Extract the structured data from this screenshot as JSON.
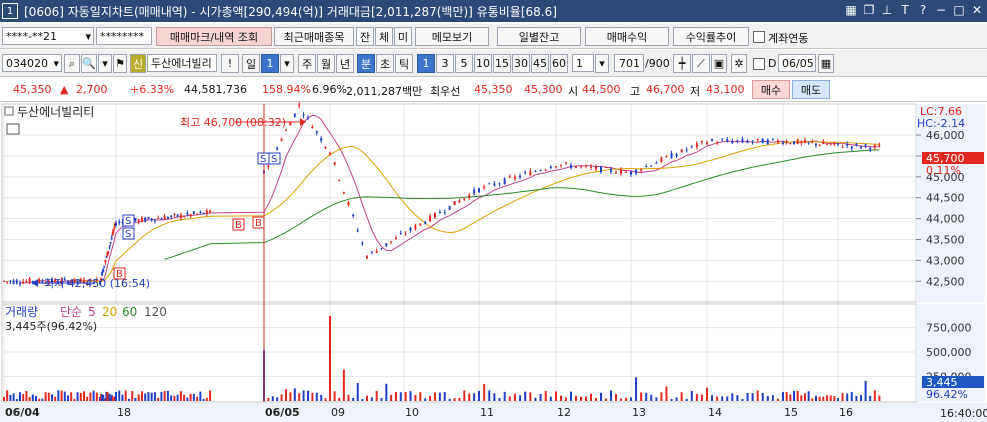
{
  "window": {
    "number": "1",
    "title": "[0606] 자동일지차트(매매내역) - 시가총액[290,494(억)] 거래대금[2,011,287(백만)] 유통비율[68.6]"
  },
  "toolbar1": {
    "account": "****-**21",
    "password": "********",
    "tabs": [
      "매매마크/내역 조회",
      "최근매매종목",
      "잔",
      "체",
      "미"
    ],
    "memo": "메모보기",
    "daily": "일별잔고",
    "profit": "매매수익",
    "trend": "수익률추이",
    "link_label": "계좌연동"
  },
  "toolbar2": {
    "code": "034020",
    "credit_badge": "신",
    "stock_name": "두산에너빌리",
    "bang": "!",
    "day_label": "일",
    "day_value": "1",
    "periods": [
      "주",
      "월",
      "년",
      "분",
      "초",
      "틱"
    ],
    "intervals": [
      "1",
      "3",
      "5",
      "10",
      "15",
      "30",
      "45",
      "60"
    ],
    "count_value": "1",
    "view_count": "701",
    "view_total": "/900",
    "d_label": "D",
    "date": "06/05"
  },
  "quote": {
    "price": "45,350",
    "change": "2,700",
    "change_pct": "+6.33%",
    "volume": "44,581,736",
    "vol_ratio": "158.94%",
    "turnover": "6.96%",
    "amount": "2,011,287백만",
    "best_ask_label": "최우선",
    "best_ask": "45,350",
    "best_bid": "45,300",
    "open_label": "시",
    "open": "44,500",
    "high_label": "고",
    "high": "46,700",
    "low_label": "저",
    "low": "43,100",
    "buy": "매수",
    "sell": "매도"
  },
  "price_panel": {
    "name": "두산에너빌리티",
    "lc": "LC:7.66",
    "hc": "HC:-2.14",
    "high_annot": "최고 46,700 (08:32)",
    "low_annot": "최저 42,450 (16:54)",
    "current_price_tag": "45,700",
    "current_pct_tag": "0.11%",
    "y_ticks": [
      "46,000",
      "45,500",
      "45,000",
      "44,500",
      "44,000",
      "43,500",
      "43,000",
      "42,500"
    ]
  },
  "volume_panel": {
    "legend_label": "거래량",
    "ma_type": "단순",
    "ma_periods": [
      "5",
      "20",
      "60",
      "120"
    ],
    "readout": "3,445주(96.42%)",
    "y_ticks": [
      "750,000",
      "500,000",
      "250,000"
    ],
    "current_tag": "3,445",
    "current_pct": "96.42%"
  },
  "x_axis": {
    "labels": [
      "06/04",
      "18",
      "06/05",
      "09",
      "10",
      "11",
      "12",
      "13",
      "14",
      "15",
      "16"
    ],
    "time": "16:40:00"
  },
  "colors": {
    "up": "#e3261e",
    "down": "#1f3fc4",
    "ma5": "#c0408a",
    "ma20": "#d8a000",
    "ma60": "#2a8a2a",
    "grid": "#e6e6e6",
    "titlebar": "#2c4a78"
  },
  "chart_data": {
    "type": "candlestick",
    "series_name": "두산에너빌리티",
    "y_range": [
      42100,
      46600
    ],
    "sessions": [
      "06/04",
      "06/05"
    ],
    "key_points": [
      {
        "label": "최저",
        "value": 42450,
        "time": "16:54"
      },
      {
        "label": "최고",
        "value": 46700,
        "time": "08:32"
      }
    ],
    "path_anchors": [
      {
        "x": "06/04 15:00",
        "price": 42500
      },
      {
        "x": "06/04 17:00",
        "price": 42500
      },
      {
        "x": "06/04 18:00",
        "price": 43900
      },
      {
        "x": "06/04 20:00",
        "price": 44150
      },
      {
        "x": "06/05 08:00",
        "price": 45100
      },
      {
        "x": "06/05 08:32",
        "price": 46700
      },
      {
        "x": "06/05 09:00",
        "price": 45600
      },
      {
        "x": "06/05 09:30",
        "price": 43100
      },
      {
        "x": "06/05 11:00",
        "price": 44700
      },
      {
        "x": "06/05 12:00",
        "price": 45300
      },
      {
        "x": "06/05 13:00",
        "price": 45100
      },
      {
        "x": "06/05 14:00",
        "price": 45850
      },
      {
        "x": "06/05 15:00",
        "price": 45850
      },
      {
        "x": "06/05 16:40",
        "price": 45700
      }
    ],
    "volume_peaks": [
      {
        "x": "06/05 08:00",
        "value": 520000
      },
      {
        "x": "06/05 09:00",
        "value": 870000
      },
      {
        "x": "06/05 09:10",
        "value": 320000
      }
    ]
  }
}
